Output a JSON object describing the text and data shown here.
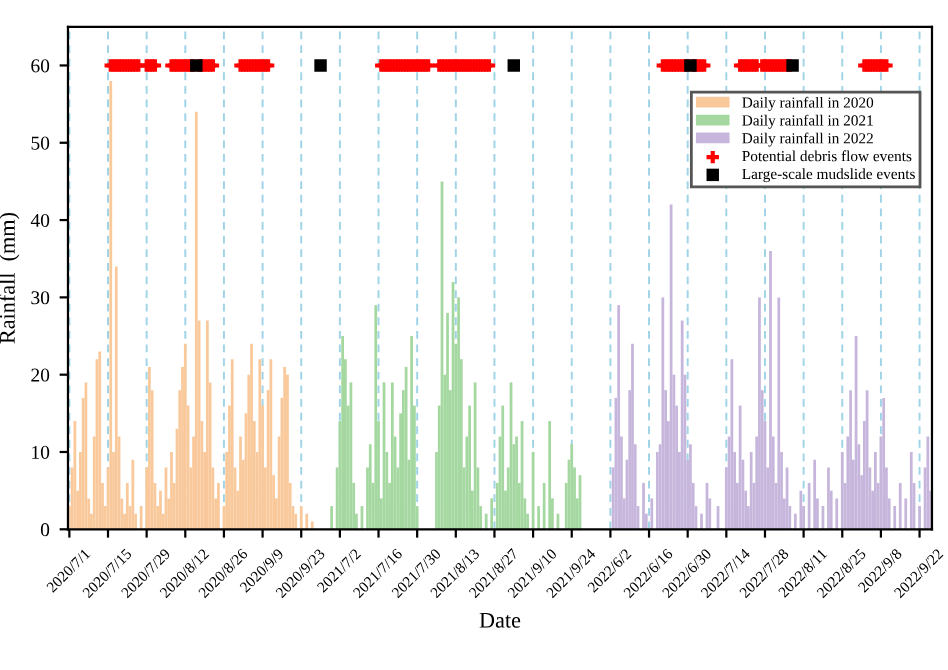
{
  "chart_data": {
    "type": "bar",
    "xlabel": "Date",
    "ylabel": "Rainfall  (mm)",
    "ylim": [
      0,
      65
    ],
    "yticks": [
      0,
      10,
      20,
      30,
      40,
      50,
      60
    ],
    "grid": "x",
    "legend": "top right",
    "categories": [
      "2020/7/1",
      null,
      null,
      null,
      null,
      null,
      null,
      null,
      null,
      null,
      null,
      null,
      null,
      null,
      "2020/7/15",
      null,
      null,
      null,
      null,
      null,
      null,
      null,
      null,
      null,
      null,
      null,
      null,
      null,
      "2020/7/29",
      null,
      null,
      null,
      null,
      null,
      null,
      null,
      null,
      null,
      null,
      null,
      null,
      null,
      "2020/8/12",
      null,
      null,
      null,
      null,
      null,
      null,
      null,
      null,
      null,
      null,
      null,
      null,
      null,
      "2020/8/26",
      null,
      null,
      null,
      null,
      null,
      null,
      null,
      null,
      null,
      null,
      null,
      null,
      null,
      "2020/9/9",
      null,
      null,
      null,
      null,
      null,
      null,
      null,
      null,
      null,
      null,
      null,
      null,
      null,
      "2020/9/23",
      null,
      null,
      null,
      null,
      null,
      null,
      null,
      null,
      null,
      null,
      null,
      null,
      null,
      "2021/7/2",
      null,
      null,
      null,
      null,
      null,
      null,
      null,
      null,
      null,
      null,
      null,
      null,
      null,
      "2021/7/16",
      null,
      null,
      null,
      null,
      null,
      null,
      null,
      null,
      null,
      null,
      null,
      null,
      null,
      "2021/7/30",
      null,
      null,
      null,
      null,
      null,
      null,
      null,
      null,
      null,
      null,
      null,
      null,
      null,
      "2021/8/13",
      null,
      null,
      null,
      null,
      null,
      null,
      null,
      null,
      null,
      null,
      null,
      null,
      null,
      "2021/8/27",
      null,
      null,
      null,
      null,
      null,
      null,
      null,
      null,
      null,
      null,
      null,
      null,
      null,
      "2021/9/10",
      null,
      null,
      null,
      null,
      null,
      null,
      null,
      null,
      null,
      null,
      null,
      null,
      null,
      "2021/9/24",
      null,
      null,
      null,
      null,
      null,
      null,
      null,
      null,
      null,
      null,
      null,
      null,
      null,
      "2022/6/2",
      null,
      null,
      null,
      null,
      null,
      null,
      null,
      null,
      null,
      null,
      null,
      null,
      null,
      "2022/6/16",
      null,
      null,
      null,
      null,
      null,
      null,
      null,
      null,
      null,
      null,
      null,
      null,
      null,
      "2022/6/30",
      null,
      null,
      null,
      null,
      null,
      null,
      null,
      null,
      null,
      null,
      null,
      null,
      null,
      "2022/7/14",
      null,
      null,
      null,
      null,
      null,
      null,
      null,
      null,
      null,
      null,
      null,
      null,
      null,
      "2022/7/28",
      null,
      null,
      null,
      null,
      null,
      null,
      null,
      null,
      null,
      null,
      null,
      null,
      null,
      "2022/8/11",
      null,
      null,
      null,
      null,
      null,
      null,
      null,
      null,
      null,
      null,
      null,
      null,
      null,
      "2022/8/25",
      null,
      null,
      null,
      null,
      null,
      null,
      null,
      null,
      null,
      null,
      null,
      null,
      null,
      "2022/9/8",
      null,
      null,
      null,
      null,
      null,
      null,
      null,
      null,
      null,
      null,
      null,
      null,
      null,
      "2022/9/22",
      null,
      null,
      null,
      null
    ],
    "series": [
      {
        "name": "Daily rainfall in 2020",
        "color": "#f9c99b",
        "values": [
          3,
          8,
          14,
          5,
          10,
          17,
          19,
          4,
          2,
          12,
          22,
          23,
          6,
          3,
          8,
          58,
          10,
          34,
          12,
          4,
          2,
          6,
          3,
          9,
          2,
          null,
          3,
          null,
          8,
          21,
          18,
          6,
          3,
          5,
          2,
          8,
          4,
          10,
          6,
          13,
          18,
          21,
          24,
          16,
          8,
          12,
          54,
          27,
          14,
          10,
          27,
          19,
          8,
          4,
          6,
          null,
          3,
          10,
          16,
          22,
          8,
          5,
          12,
          9,
          15,
          20,
          24,
          14,
          10,
          22,
          16,
          8,
          18,
          22,
          7,
          4,
          12,
          17,
          21,
          20,
          6,
          3,
          2,
          null,
          3,
          null,
          2,
          null,
          1,
          null,
          null,
          null,
          null,
          null,
          null,
          null,
          null,
          null,
          null,
          null,
          null,
          null,
          null,
          null,
          null,
          null,
          null,
          null,
          null,
          null,
          null,
          null,
          null,
          null,
          null,
          null,
          null,
          null,
          null,
          null,
          null,
          null,
          null,
          null,
          null,
          null,
          null,
          null,
          null,
          null,
          null,
          null,
          null,
          null,
          null,
          null,
          null,
          null,
          null,
          null,
          null,
          null,
          null,
          null,
          null,
          null,
          null,
          null,
          null,
          null,
          null,
          null,
          null,
          null,
          null,
          null,
          null,
          null,
          null,
          null,
          null,
          null,
          null,
          null,
          null,
          null,
          null,
          null,
          null,
          null,
          null,
          null,
          null,
          null,
          null,
          null,
          null,
          null,
          null,
          null,
          null,
          null,
          null,
          null,
          null,
          null,
          null,
          null,
          null,
          null,
          null,
          null,
          null,
          null,
          null,
          null,
          null,
          null,
          null,
          null,
          null,
          null,
          null,
          null,
          null,
          null,
          null,
          null,
          null,
          null,
          null,
          null,
          null,
          null,
          null,
          null,
          null,
          null,
          null,
          null,
          null,
          null,
          null,
          null,
          null,
          null,
          null,
          null,
          null,
          null,
          null,
          null,
          null,
          null,
          null,
          null,
          null,
          null,
          null,
          null,
          null,
          null,
          null,
          null,
          null,
          null,
          null,
          null,
          null,
          null,
          null,
          null,
          null,
          null,
          null,
          null,
          null,
          null,
          null,
          null,
          null,
          null,
          null,
          null,
          null,
          null,
          null,
          null,
          null,
          null,
          null,
          null,
          null,
          null,
          null,
          null,
          null,
          null,
          null,
          null,
          null,
          null,
          null,
          null,
          null,
          null,
          null,
          null,
          null,
          null,
          null,
          null,
          null,
          null,
          null,
          null,
          null,
          null,
          null,
          null,
          null,
          null,
          null,
          null,
          null,
          null,
          null,
          null,
          null,
          null,
          null,
          null,
          null
        ]
      },
      {
        "name": "Daily rainfall in 2021",
        "color": "#a5d8a0",
        "values": [
          null,
          null,
          null,
          null,
          null,
          null,
          null,
          null,
          null,
          null,
          null,
          null,
          null,
          null,
          null,
          null,
          null,
          null,
          null,
          null,
          null,
          null,
          null,
          null,
          null,
          null,
          null,
          null,
          null,
          null,
          null,
          null,
          null,
          null,
          null,
          null,
          null,
          null,
          null,
          null,
          null,
          null,
          null,
          null,
          null,
          null,
          null,
          null,
          null,
          null,
          null,
          null,
          null,
          null,
          null,
          null,
          null,
          null,
          null,
          null,
          null,
          null,
          null,
          null,
          null,
          null,
          null,
          null,
          null,
          null,
          null,
          null,
          null,
          null,
          null,
          null,
          null,
          null,
          null,
          null,
          null,
          null,
          null,
          null,
          null,
          null,
          null,
          null,
          null,
          null,
          null,
          null,
          null,
          null,
          null,
          3,
          null,
          8,
          14,
          25,
          22,
          16,
          19,
          6,
          2,
          null,
          3,
          null,
          8,
          11,
          6,
          29,
          14,
          4,
          19,
          10,
          6,
          19,
          12,
          8,
          15,
          18,
          21,
          9,
          25,
          16,
          3,
          null,
          null,
          null,
          null,
          null,
          null,
          10,
          16,
          45,
          20,
          28,
          18,
          32,
          24,
          30,
          22,
          8,
          12,
          16,
          5,
          19,
          8,
          3,
          null,
          2,
          null,
          4,
          null,
          6,
          12,
          16,
          5,
          8,
          19,
          11,
          12,
          6,
          14,
          4,
          2,
          null,
          10,
          null,
          3,
          null,
          6,
          null,
          14,
          4,
          null,
          2,
          null,
          null,
          6,
          9,
          11,
          8,
          4,
          7,
          null,
          null,
          null,
          null,
          null,
          null,
          null,
          null,
          null,
          null,
          null,
          null,
          null,
          null,
          null,
          null,
          null,
          null,
          null,
          null,
          null,
          null,
          null,
          null,
          null,
          null,
          null,
          null,
          null,
          null,
          null,
          null,
          null,
          null,
          null,
          null,
          null,
          null,
          null,
          null,
          null,
          null,
          null,
          null,
          null,
          null,
          null,
          null,
          null,
          null,
          null,
          null,
          null,
          null,
          null,
          null,
          null,
          null,
          null,
          null,
          null,
          null,
          null,
          null,
          null,
          null,
          null,
          null,
          null,
          null,
          null,
          null,
          null,
          null,
          null,
          null,
          null,
          null,
          null,
          null,
          null,
          null,
          null,
          null,
          null,
          null,
          null,
          null,
          null,
          null,
          null,
          null,
          null,
          null,
          null,
          null,
          null,
          null,
          null,
          null,
          null,
          null,
          null,
          null,
          null,
          null,
          null,
          null,
          null,
          null,
          null,
          null,
          null,
          null,
          null,
          null,
          null,
          null,
          null,
          null,
          null,
          null,
          null,
          null,
          null,
          null,
          null
        ]
      },
      {
        "name": "Daily rainfall in 2022",
        "color": "#c7b6dc",
        "values": [
          null,
          null,
          null,
          null,
          null,
          null,
          null,
          null,
          null,
          null,
          null,
          null,
          null,
          null,
          null,
          null,
          null,
          null,
          null,
          null,
          null,
          null,
          null,
          null,
          null,
          null,
          null,
          null,
          null,
          null,
          null,
          null,
          null,
          null,
          null,
          null,
          null,
          null,
          null,
          null,
          null,
          null,
          null,
          null,
          null,
          null,
          null,
          null,
          null,
          null,
          null,
          null,
          null,
          null,
          null,
          null,
          null,
          null,
          null,
          null,
          null,
          null,
          null,
          null,
          null,
          null,
          null,
          null,
          null,
          null,
          null,
          null,
          null,
          null,
          null,
          null,
          null,
          null,
          null,
          null,
          null,
          null,
          null,
          null,
          null,
          null,
          null,
          null,
          null,
          null,
          null,
          null,
          null,
          null,
          null,
          null,
          null,
          null,
          null,
          null,
          null,
          null,
          null,
          null,
          null,
          null,
          null,
          null,
          null,
          null,
          null,
          null,
          null,
          null,
          null,
          null,
          null,
          null,
          null,
          null,
          null,
          null,
          null,
          null,
          null,
          null,
          null,
          null,
          null,
          null,
          null,
          null,
          null,
          null,
          null,
          null,
          null,
          null,
          null,
          null,
          null,
          null,
          null,
          null,
          null,
          null,
          null,
          null,
          null,
          null,
          null,
          null,
          null,
          null,
          null,
          null,
          null,
          null,
          null,
          null,
          null,
          null,
          null,
          null,
          null,
          null,
          null,
          null,
          null,
          null,
          null,
          null,
          null,
          null,
          null,
          null,
          null,
          null,
          null,
          null,
          null,
          null,
          null,
          null,
          null,
          null,
          null,
          null,
          null,
          null,
          null,
          null,
          null,
          null,
          null,
          null,
          null,
          8,
          17,
          29,
          12,
          4,
          9,
          18,
          24,
          11,
          3,
          null,
          6,
          2,
          null,
          4,
          null,
          10,
          11,
          30,
          18,
          14,
          42,
          20,
          16,
          10,
          27,
          20,
          9,
          11,
          6,
          3,
          null,
          2,
          null,
          6,
          4,
          null,
          null,
          3,
          null,
          null,
          8,
          12,
          22,
          10,
          6,
          16,
          9,
          5,
          3,
          10,
          6,
          12,
          30,
          18,
          14,
          8,
          36,
          12,
          6,
          30,
          10,
          4,
          8,
          3,
          null,
          2,
          null,
          5,
          3,
          null,
          6,
          null,
          9,
          4,
          null,
          3,
          null,
          8,
          5,
          null,
          4,
          null,
          10,
          6,
          12,
          18,
          9,
          25,
          11,
          7,
          14,
          18,
          8,
          5,
          10,
          6,
          12,
          17,
          8,
          4,
          null,
          3,
          null,
          6,
          null,
          4,
          null,
          10,
          6,
          null,
          3,
          null,
          8,
          12,
          5
        ]
      },
      {
        "name": "Potential debris flow events",
        "type": "scatter",
        "color": "#ff0000",
        "marker": "cross",
        "values": [
          null,
          null,
          null,
          null,
          null,
          null,
          null,
          null,
          null,
          null,
          null,
          null,
          null,
          null,
          null,
          60,
          60,
          60,
          60,
          60,
          60,
          60,
          60,
          60,
          60,
          60,
          null,
          null,
          60,
          60,
          60,
          60,
          null,
          null,
          null,
          null,
          null,
          60,
          60,
          60,
          60,
          60,
          60,
          60,
          60,
          60,
          null,
          60,
          60,
          60,
          60,
          60,
          60,
          null,
          null,
          null,
          null,
          null,
          null,
          null,
          null,
          null,
          60,
          60,
          60,
          60,
          60,
          60,
          60,
          60,
          60,
          60,
          60,
          null,
          null,
          null,
          null,
          null,
          null,
          null,
          null,
          null,
          null,
          null,
          null,
          null,
          null,
          null,
          null,
          null,
          null,
          null,
          null,
          null,
          null,
          null,
          null,
          null,
          null,
          null,
          null,
          null,
          null,
          null,
          null,
          null,
          null,
          null,
          null,
          null,
          null,
          null,
          null,
          60,
          60,
          60,
          60,
          60,
          60,
          60,
          60,
          60,
          60,
          60,
          60,
          60,
          60,
          60,
          60,
          60,
          60,
          null,
          null,
          null,
          60,
          60,
          60,
          60,
          60,
          60,
          60,
          60,
          60,
          60,
          60,
          60,
          60,
          60,
          60,
          60,
          60,
          60,
          60,
          null,
          null,
          null,
          null,
          null,
          null,
          null,
          null,
          null,
          null,
          null,
          null,
          null,
          null,
          null,
          null,
          null,
          null,
          null,
          null,
          null,
          null,
          null,
          null,
          null,
          null,
          null,
          null,
          null,
          null,
          null,
          null,
          null,
          null,
          null,
          null,
          null,
          null,
          null,
          null,
          null,
          null,
          null,
          null,
          null,
          null,
          null,
          null,
          null,
          null,
          null,
          null,
          null,
          null,
          null,
          null,
          null,
          null,
          null,
          null,
          null,
          null,
          60,
          60,
          60,
          60,
          60,
          60,
          60,
          60,
          60,
          60,
          null,
          60,
          60,
          60,
          60,
          60,
          null,
          null,
          null,
          null,
          null,
          null,
          null,
          null,
          null,
          null,
          null,
          null,
          60,
          60,
          60,
          60,
          60,
          60,
          60,
          null,
          60,
          60,
          60,
          60,
          60,
          60,
          60,
          60,
          60,
          60,
          60,
          null,
          null,
          null,
          null,
          null,
          null,
          null,
          null,
          null,
          null,
          null,
          null,
          null,
          null,
          null,
          null,
          null,
          null,
          null,
          null,
          null,
          null,
          null,
          null,
          null,
          null,
          60,
          60,
          60,
          60,
          60,
          60,
          60,
          60,
          60,
          null,
          null,
          null,
          null,
          null,
          null,
          null,
          null,
          null,
          null,
          null,
          null,
          null,
          null,
          null,
          null
        ]
      },
      {
        "name": "Large-scale mudslide events",
        "type": "scatter",
        "color": "#000000",
        "marker": "square",
        "values": [
          null,
          null,
          null,
          null,
          null,
          null,
          null,
          null,
          null,
          null,
          null,
          null,
          null,
          null,
          null,
          null,
          null,
          null,
          null,
          null,
          null,
          null,
          null,
          null,
          null,
          null,
          null,
          null,
          null,
          null,
          null,
          null,
          null,
          null,
          null,
          null,
          null,
          null,
          null,
          null,
          null,
          null,
          null,
          null,
          null,
          null,
          60,
          null,
          null,
          null,
          null,
          null,
          null,
          null,
          null,
          null,
          null,
          null,
          null,
          null,
          null,
          null,
          null,
          null,
          null,
          null,
          null,
          null,
          null,
          null,
          null,
          null,
          null,
          null,
          null,
          null,
          null,
          null,
          null,
          null,
          null,
          null,
          null,
          null,
          null,
          null,
          null,
          null,
          null,
          null,
          null,
          60,
          null,
          null,
          null,
          null,
          null,
          null,
          null,
          null,
          null,
          null,
          null,
          null,
          null,
          null,
          null,
          null,
          null,
          null,
          null,
          null,
          null,
          null,
          null,
          null,
          null,
          null,
          null,
          null,
          null,
          null,
          null,
          null,
          null,
          null,
          null,
          null,
          null,
          null,
          null,
          null,
          null,
          null,
          null,
          null,
          null,
          null,
          null,
          null,
          null,
          null,
          null,
          null,
          null,
          null,
          null,
          null,
          null,
          null,
          null,
          null,
          null,
          null,
          null,
          null,
          null,
          null,
          null,
          null,
          null,
          60,
          null,
          null,
          null,
          null,
          null,
          null,
          null,
          null,
          null,
          null,
          null,
          null,
          null,
          null,
          null,
          null,
          null,
          null,
          null,
          null,
          null,
          null,
          null,
          null,
          null,
          null,
          null,
          null,
          null,
          null,
          null,
          null,
          null,
          null,
          null,
          null,
          null,
          null,
          null,
          null,
          null,
          null,
          null,
          null,
          null,
          null,
          null,
          null,
          null,
          null,
          null,
          null,
          null,
          null,
          null,
          null,
          null,
          null,
          null,
          null,
          null,
          null,
          null,
          60,
          null,
          null,
          null,
          null,
          null,
          null,
          null,
          null,
          null,
          null,
          null,
          null,
          null,
          null,
          null,
          null,
          null,
          null,
          null,
          null,
          null,
          null,
          null,
          null,
          null,
          null,
          null,
          null,
          null,
          null,
          null,
          null,
          null,
          null,
          null,
          null,
          60,
          null,
          null,
          null,
          null,
          null,
          null,
          null,
          null,
          null,
          null,
          null,
          null,
          null,
          null,
          null,
          null,
          null,
          null,
          null,
          null,
          null,
          null,
          null,
          null,
          null,
          null,
          null,
          null,
          null,
          null,
          null,
          null,
          null,
          null,
          null,
          null,
          null,
          null,
          null,
          null,
          null,
          null,
          null,
          null,
          null,
          null,
          null,
          null,
          null,
          null
        ]
      }
    ]
  }
}
